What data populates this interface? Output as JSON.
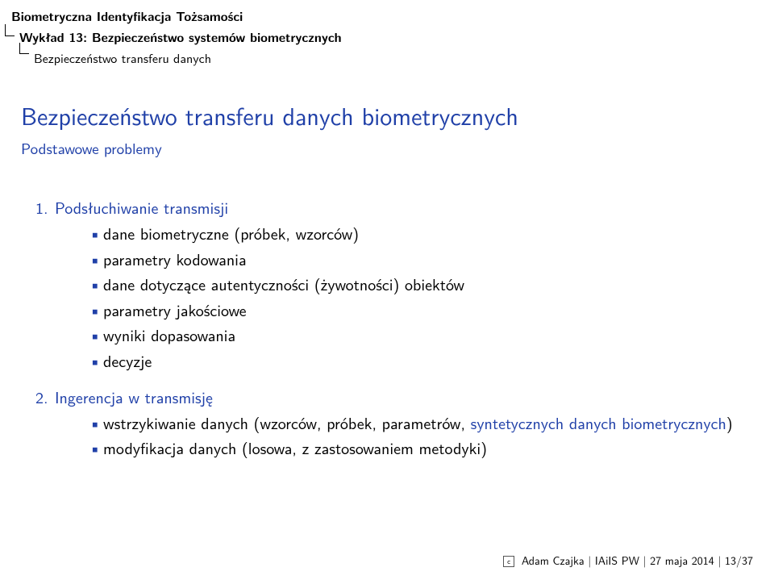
{
  "header": {
    "line1": "Biometryczna Identyfikacja Tożsamości",
    "line2": "Wykład 13: Bezpieczeństwo systemów biometrycznych",
    "line3": "Bezpieczeństwo transferu danych"
  },
  "title": "Bezpieczeństwo transferu danych biometrycznych",
  "subtitle": "Podstawowe problemy",
  "items": [
    {
      "num": "1.",
      "label": "Podsłuchiwanie transmisji",
      "bullets": [
        "dane biometryczne (próbek, wzorców)",
        "parametry kodowania",
        "dane dotyczące autentyczności (żywotności) obiektów",
        "parametry jakościowe",
        "wyniki dopasowania",
        "decyzje"
      ]
    },
    {
      "num": "2.",
      "label": "Ingerencja w transmisję",
      "bullets_complex": [
        {
          "parts": [
            {
              "text": "wstrzykiwanie danych (wzorców, próbek, parametrów, ",
              "color": "black"
            },
            {
              "text": "syntetycznych danych biometrycznych",
              "color": "blue"
            },
            {
              "text": ")",
              "color": "black"
            }
          ]
        },
        {
          "parts": [
            {
              "text": "modyfikacja danych (losowa, z zastosowaniem metodyki)",
              "color": "black"
            }
          ]
        }
      ]
    }
  ],
  "footer": {
    "copyright": "c",
    "text": "Adam Czajka | IAiIS PW | 27 maja 2014 | 13/37"
  },
  "colors": {
    "blue": "#2040a8",
    "black": "#000000",
    "background": "#ffffff"
  }
}
